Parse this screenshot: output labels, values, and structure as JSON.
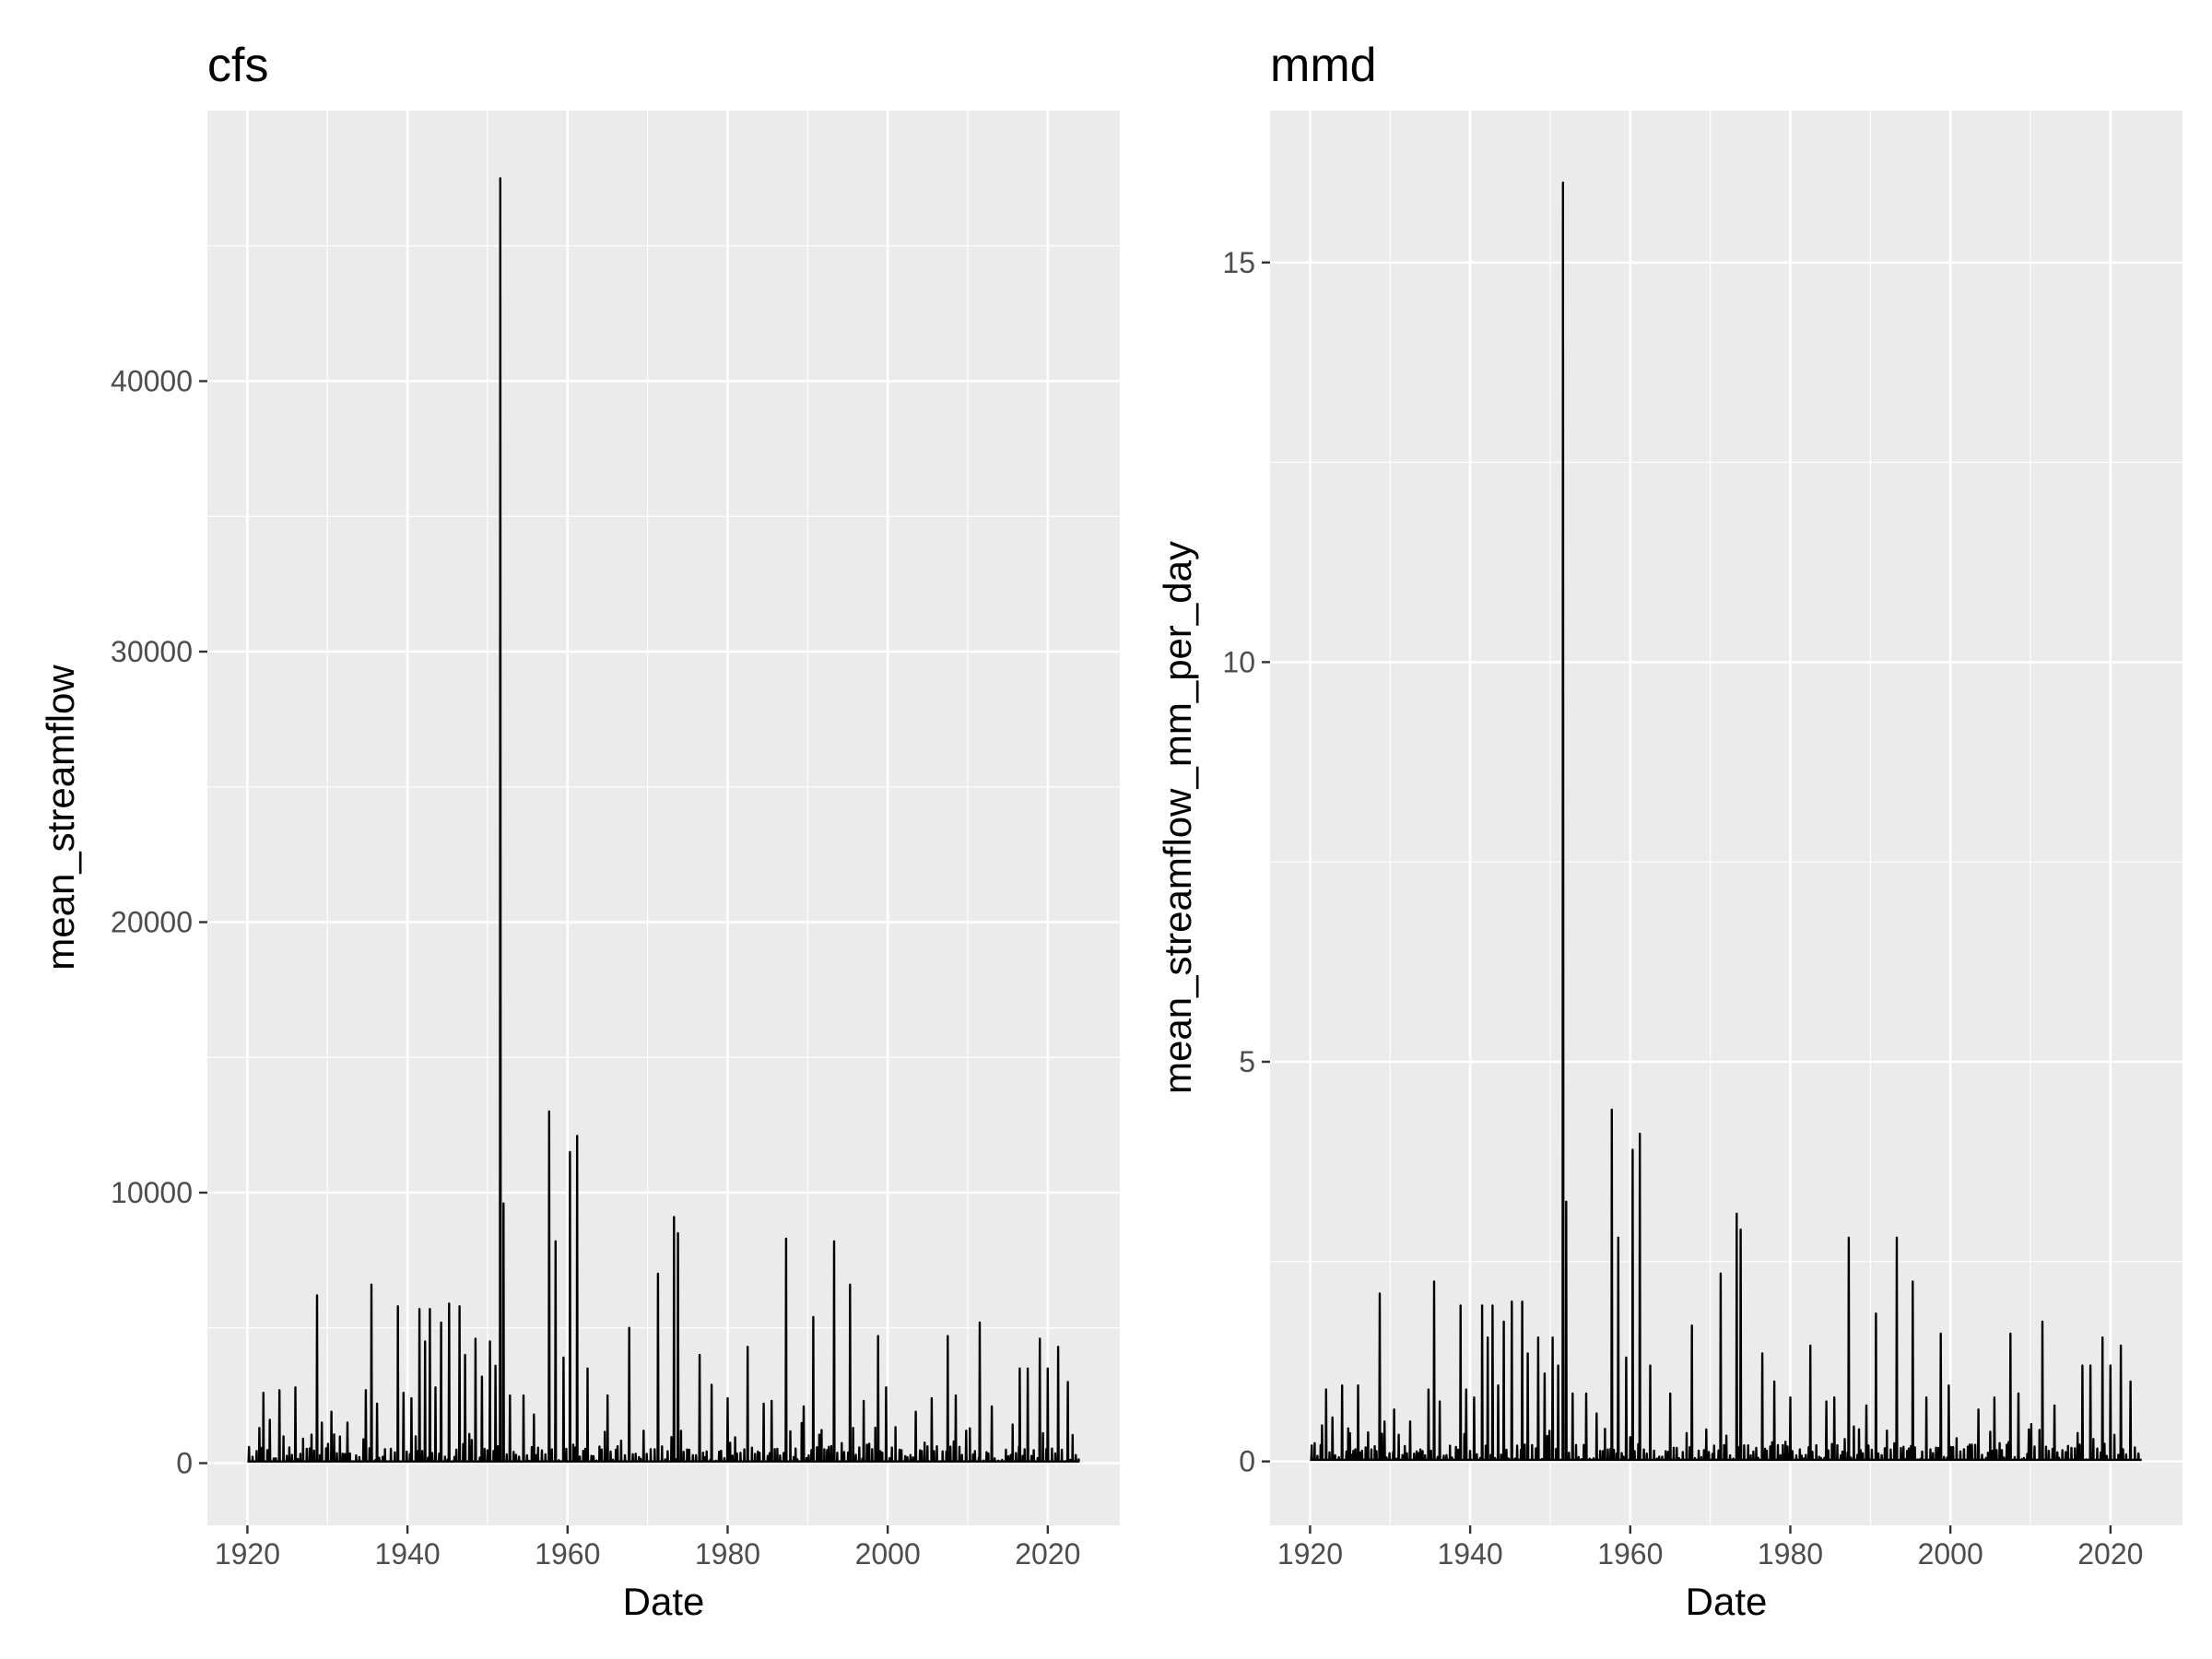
{
  "chart_data": [
    {
      "type": "line",
      "title": "cfs",
      "xlabel": "Date",
      "ylabel": "mean_streamflow",
      "xlim": [
        1915,
        2029
      ],
      "ylim": [
        -2300,
        50000
      ],
      "x_ticks": [
        1920,
        1940,
        1960,
        1980,
        2000,
        2020
      ],
      "x_tick_labels": [
        "1920",
        "1940",
        "1960",
        "1980",
        "2000",
        "2020"
      ],
      "y_ticks": [
        0,
        10000,
        20000,
        30000,
        40000
      ],
      "y_tick_labels": [
        "0",
        "10000",
        "20000",
        "30000",
        "40000"
      ],
      "baseflow": 60,
      "series": [
        {
          "name": "mean_streamflow",
          "peaks": [
            [
              1920.2,
              600
            ],
            [
              1921.5,
              1300
            ],
            [
              1922.0,
              2600
            ],
            [
              1922.8,
              1600
            ],
            [
              1924.0,
              2700
            ],
            [
              1926.0,
              2800
            ],
            [
              1928.7,
              6200
            ],
            [
              1929.3,
              1500
            ],
            [
              1930.5,
              1900
            ],
            [
              1932.5,
              1500
            ],
            [
              1934.8,
              2700
            ],
            [
              1935.5,
              6600
            ],
            [
              1936.2,
              2200
            ],
            [
              1938.8,
              5800
            ],
            [
              1939.5,
              2600
            ],
            [
              1940.5,
              2400
            ],
            [
              1941.5,
              5700
            ],
            [
              1942.2,
              4500
            ],
            [
              1942.8,
              5700
            ],
            [
              1943.5,
              2800
            ],
            [
              1944.2,
              5200
            ],
            [
              1945.2,
              5900
            ],
            [
              1946.5,
              5800
            ],
            [
              1947.2,
              4000
            ],
            [
              1948.5,
              4600
            ],
            [
              1949.3,
              3200
            ],
            [
              1950.3,
              4500
            ],
            [
              1951.0,
              3600
            ],
            [
              1951.6,
              47500
            ],
            [
              1952.0,
              9600
            ],
            [
              1952.8,
              2500
            ],
            [
              1954.5,
              2500
            ],
            [
              1955.8,
              1800
            ],
            [
              1957.7,
              13000
            ],
            [
              1958.5,
              8200
            ],
            [
              1959.5,
              3900
            ],
            [
              1960.3,
              11500
            ],
            [
              1961.2,
              12100
            ],
            [
              1962.5,
              3500
            ],
            [
              1965.0,
              2500
            ],
            [
              1967.7,
              5000
            ],
            [
              1969.5,
              1200
            ],
            [
              1971.3,
              7000
            ],
            [
              1973.3,
              9100
            ],
            [
              1973.8,
              8500
            ],
            [
              1976.5,
              4000
            ],
            [
              1978.0,
              2900
            ],
            [
              1980.0,
              2400
            ],
            [
              1982.5,
              4300
            ],
            [
              1984.5,
              2200
            ],
            [
              1985.5,
              2300
            ],
            [
              1987.3,
              8300
            ],
            [
              1989.5,
              2100
            ],
            [
              1990.7,
              5400
            ],
            [
              1993.3,
              8200
            ],
            [
              1995.3,
              6600
            ],
            [
              1997.0,
              2300
            ],
            [
              1998.8,
              4700
            ],
            [
              1999.8,
              2800
            ],
            [
              2003.5,
              1900
            ],
            [
              2005.5,
              2400
            ],
            [
              2007.5,
              4700
            ],
            [
              2008.5,
              2500
            ],
            [
              2009.8,
              1200
            ],
            [
              2011.5,
              5200
            ],
            [
              2013.0,
              2100
            ],
            [
              2016.5,
              3500
            ],
            [
              2017.5,
              3500
            ],
            [
              2019.0,
              4600
            ],
            [
              2020.0,
              3500
            ],
            [
              2021.3,
              4300
            ],
            [
              2022.5,
              3000
            ],
            [
              2023.5,
              300
            ]
          ]
        }
      ]
    },
    {
      "type": "line",
      "title": "mmd",
      "xlabel": "Date",
      "ylabel": "mean_streamflow_mm_per_day",
      "xlim": [
        1915,
        2029
      ],
      "ylim": [
        -0.8,
        16.9
      ],
      "x_ticks": [
        1920,
        1940,
        1960,
        1980,
        2000,
        2020
      ],
      "x_tick_labels": [
        "1920",
        "1940",
        "1960",
        "1980",
        "2000",
        "2020"
      ],
      "y_ticks": [
        0,
        5,
        10,
        15
      ],
      "y_tick_labels": [
        "0",
        "5",
        "10",
        "15"
      ],
      "baseflow": 0.02,
      "series": [
        {
          "name": "mean_streamflow_mm_per_day",
          "peaks": [
            [
              1920.2,
              0.2
            ],
            [
              1921.5,
              0.45
            ],
            [
              1922.0,
              0.9
            ],
            [
              1922.8,
              0.55
            ],
            [
              1924.0,
              0.95
            ],
            [
              1926.0,
              0.95
            ],
            [
              1928.7,
              2.1
            ],
            [
              1929.3,
              0.5
            ],
            [
              1930.5,
              0.65
            ],
            [
              1932.5,
              0.5
            ],
            [
              1934.8,
              0.9
            ],
            [
              1935.5,
              2.25
            ],
            [
              1936.2,
              0.75
            ],
            [
              1938.8,
              1.95
            ],
            [
              1939.5,
              0.9
            ],
            [
              1940.5,
              0.8
            ],
            [
              1941.5,
              1.95
            ],
            [
              1942.2,
              1.55
            ],
            [
              1942.8,
              1.95
            ],
            [
              1943.5,
              0.95
            ],
            [
              1944.2,
              1.75
            ],
            [
              1945.2,
              2.0
            ],
            [
              1946.5,
              2.0
            ],
            [
              1947.2,
              1.35
            ],
            [
              1948.5,
              1.55
            ],
            [
              1949.3,
              1.1
            ],
            [
              1950.3,
              1.55
            ],
            [
              1951.0,
              1.2
            ],
            [
              1951.6,
              16.0
            ],
            [
              1952.0,
              3.25
            ],
            [
              1952.8,
              0.85
            ],
            [
              1954.5,
              0.85
            ],
            [
              1955.8,
              0.6
            ],
            [
              1957.7,
              4.4
            ],
            [
              1958.5,
              2.8
            ],
            [
              1959.5,
              1.3
            ],
            [
              1960.3,
              3.9
            ],
            [
              1961.2,
              4.1
            ],
            [
              1962.5,
              1.2
            ],
            [
              1965.0,
              0.85
            ],
            [
              1967.7,
              1.7
            ],
            [
              1969.5,
              0.4
            ],
            [
              1971.3,
              2.35
            ],
            [
              1973.3,
              3.1
            ],
            [
              1973.8,
              2.9
            ],
            [
              1976.5,
              1.35
            ],
            [
              1978.0,
              1.0
            ],
            [
              1980.0,
              0.8
            ],
            [
              1982.5,
              1.45
            ],
            [
              1984.5,
              0.75
            ],
            [
              1985.5,
              0.8
            ],
            [
              1987.3,
              2.8
            ],
            [
              1989.5,
              0.7
            ],
            [
              1990.7,
              1.85
            ],
            [
              1993.3,
              2.8
            ],
            [
              1995.3,
              2.25
            ],
            [
              1997.0,
              0.8
            ],
            [
              1998.8,
              1.6
            ],
            [
              1999.8,
              0.95
            ],
            [
              2003.5,
              0.65
            ],
            [
              2005.5,
              0.8
            ],
            [
              2007.5,
              1.6
            ],
            [
              2008.5,
              0.85
            ],
            [
              2009.8,
              0.4
            ],
            [
              2011.5,
              1.75
            ],
            [
              2013.0,
              0.7
            ],
            [
              2016.5,
              1.2
            ],
            [
              2017.5,
              1.2
            ],
            [
              2019.0,
              1.55
            ],
            [
              2020.0,
              1.2
            ],
            [
              2021.3,
              1.45
            ],
            [
              2022.5,
              1.0
            ],
            [
              2023.5,
              0.1
            ]
          ]
        }
      ]
    }
  ]
}
